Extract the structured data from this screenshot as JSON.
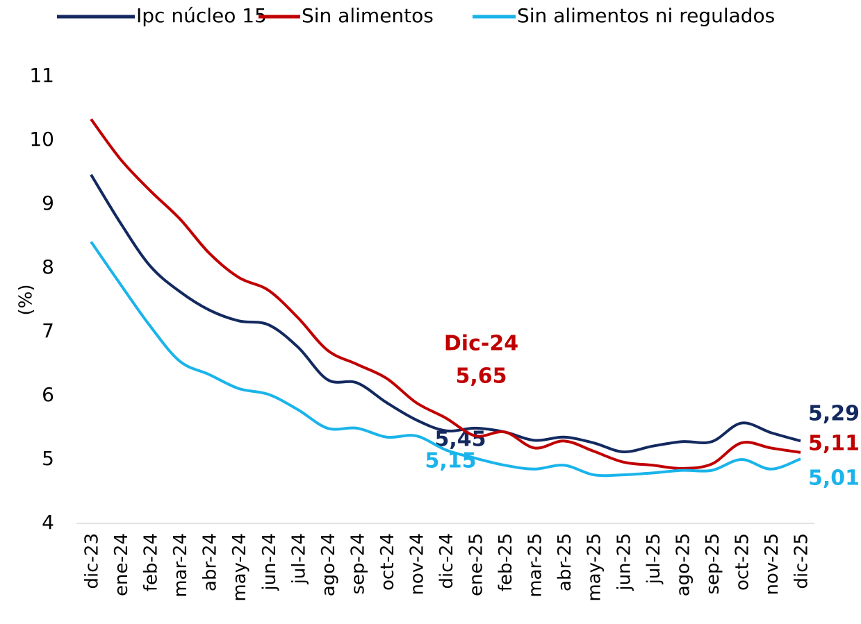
{
  "chart_data": {
    "type": "line",
    "ylabel": "(%)",
    "annotation": "Dic-24",
    "categories": [
      "dic-23",
      "ene-24",
      "feb-24",
      "mar-24",
      "abr-24",
      "may-24",
      "jun-24",
      "jul-24",
      "ago-24",
      "sep-24",
      "oct-24",
      "nov-24",
      "dic-24",
      "ene-25",
      "feb-25",
      "mar-25",
      "abr-25",
      "may-25",
      "jun-25",
      "jul-25",
      "ago-25",
      "sep-25",
      "oct-25",
      "nov-25",
      "dic-25"
    ],
    "series": [
      {
        "name": "Ipc núcleo 15",
        "color": "#13295f",
        "values": [
          9.46,
          8.7,
          8.03,
          7.63,
          7.34,
          7.17,
          7.11,
          6.76,
          6.25,
          6.2,
          5.89,
          5.62,
          5.45,
          5.49,
          5.43,
          5.3,
          5.35,
          5.26,
          5.12,
          5.21,
          5.28,
          5.28,
          5.57,
          5.42,
          5.29
        ],
        "value_labels": [
          null,
          null,
          null,
          null,
          null,
          null,
          null,
          null,
          null,
          null,
          null,
          null,
          "5,45",
          null,
          null,
          null,
          null,
          null,
          null,
          null,
          null,
          null,
          null,
          null,
          "5,29"
        ]
      },
      {
        "name": "Sin alimentos",
        "color": "#c00000",
        "values": [
          10.33,
          9.7,
          9.21,
          8.77,
          8.23,
          7.85,
          7.65,
          7.22,
          6.71,
          6.49,
          6.27,
          5.89,
          5.65,
          5.37,
          5.43,
          5.18,
          5.29,
          5.13,
          4.96,
          4.91,
          4.86,
          4.93,
          5.26,
          5.18,
          5.11
        ],
        "value_labels": [
          null,
          null,
          null,
          null,
          null,
          null,
          null,
          null,
          null,
          null,
          null,
          null,
          "5,65",
          null,
          null,
          null,
          null,
          null,
          null,
          null,
          null,
          null,
          null,
          null,
          "5,11"
        ]
      },
      {
        "name": "Sin alimentos ni regulados",
        "color": "#1ab4ea",
        "values": [
          8.41,
          7.74,
          7.09,
          6.54,
          6.33,
          6.11,
          6.02,
          5.78,
          5.49,
          5.49,
          5.35,
          5.37,
          5.15,
          5.02,
          4.91,
          4.85,
          4.91,
          4.76,
          4.76,
          4.79,
          4.83,
          4.83,
          5.0,
          4.85,
          5.01
        ],
        "value_labels": [
          null,
          null,
          null,
          null,
          null,
          null,
          null,
          null,
          null,
          null,
          null,
          null,
          "5,15",
          null,
          null,
          null,
          null,
          null,
          null,
          null,
          null,
          null,
          null,
          null,
          "5,01"
        ]
      }
    ],
    "ylim": [
      4,
      11
    ],
    "yticks": [
      4,
      5,
      6,
      7,
      8,
      9,
      10,
      11
    ],
    "grid": false,
    "legend": "top"
  }
}
